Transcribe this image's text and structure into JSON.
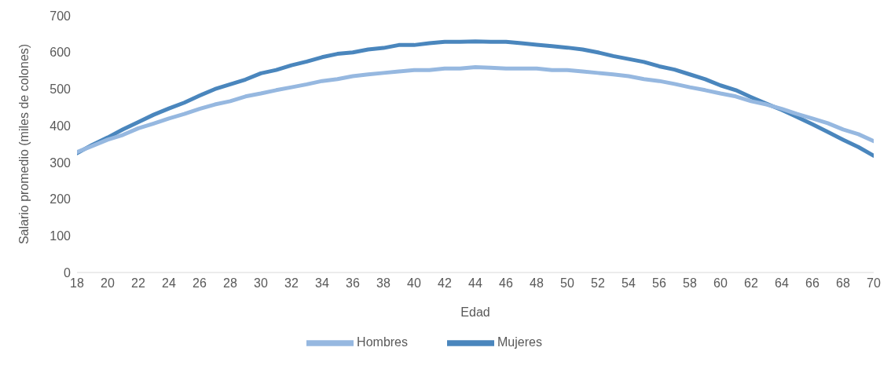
{
  "chart_data": {
    "type": "line",
    "xlabel": "Edad",
    "ylabel": "Salario promedio  (miles de colones)",
    "x": [
      18,
      19,
      20,
      21,
      22,
      23,
      24,
      25,
      26,
      27,
      28,
      29,
      30,
      31,
      32,
      33,
      34,
      35,
      36,
      37,
      38,
      39,
      40,
      41,
      42,
      43,
      44,
      45,
      46,
      47,
      48,
      49,
      50,
      51,
      52,
      53,
      54,
      55,
      56,
      57,
      58,
      59,
      60,
      61,
      62,
      63,
      64,
      65,
      66,
      67,
      68,
      69,
      70
    ],
    "series": [
      {
        "name": "Mujeres",
        "color": "#4a86bd",
        "values": [
          325,
          348,
          368,
          390,
          410,
          430,
          447,
          463,
          482,
          500,
          513,
          526,
          543,
          552,
          565,
          575,
          587,
          596,
          600,
          608,
          612,
          620,
          620,
          625,
          629,
          629,
          630,
          629,
          629,
          625,
          621,
          617,
          613,
          608,
          600,
          590,
          582,
          574,
          562,
          553,
          540,
          527,
          510,
          497,
          478,
          460,
          443,
          424,
          404,
          383,
          362,
          342,
          318
        ]
      },
      {
        "name": "Hombres",
        "color": "#96b8e0",
        "values": [
          328,
          345,
          362,
          375,
          393,
          406,
          420,
          432,
          446,
          458,
          467,
          480,
          488,
          497,
          505,
          513,
          522,
          527,
          535,
          540,
          544,
          548,
          552,
          552,
          556,
          556,
          560,
          558,
          556,
          556,
          556,
          552,
          552,
          548,
          544,
          540,
          535,
          527,
          522,
          514,
          505,
          497,
          488,
          480,
          467,
          458,
          446,
          432,
          420,
          407,
          390,
          377,
          358
        ]
      }
    ],
    "xlim": [
      18,
      70
    ],
    "xticks": [
      18,
      20,
      22,
      24,
      26,
      28,
      30,
      32,
      34,
      36,
      38,
      40,
      42,
      44,
      46,
      48,
      50,
      52,
      54,
      56,
      58,
      60,
      62,
      64,
      66,
      68,
      70
    ],
    "ylim": [
      0,
      700
    ],
    "yticks": [
      0,
      100,
      200,
      300,
      400,
      500,
      600,
      700
    ],
    "grid": false,
    "legend": "bottom",
    "marker": "none",
    "line_style": "solid"
  }
}
